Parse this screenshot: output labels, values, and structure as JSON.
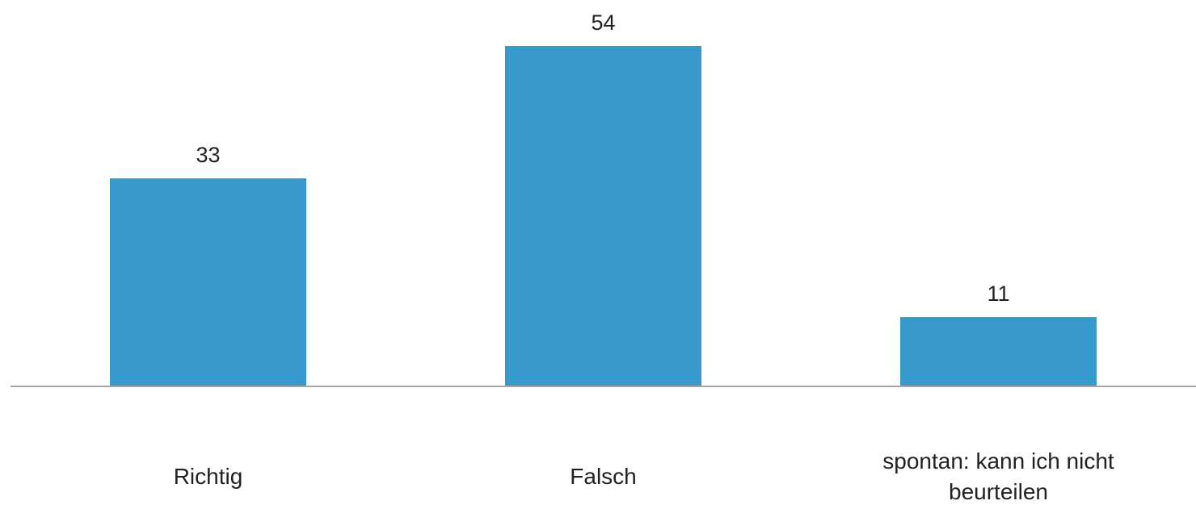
{
  "chart_data": {
    "type": "bar",
    "categories": [
      "Richtig",
      "Falsch",
      "spontan: kann ich nicht beurteilen"
    ],
    "values": [
      33,
      54,
      11
    ],
    "color": "#3899cc"
  }
}
